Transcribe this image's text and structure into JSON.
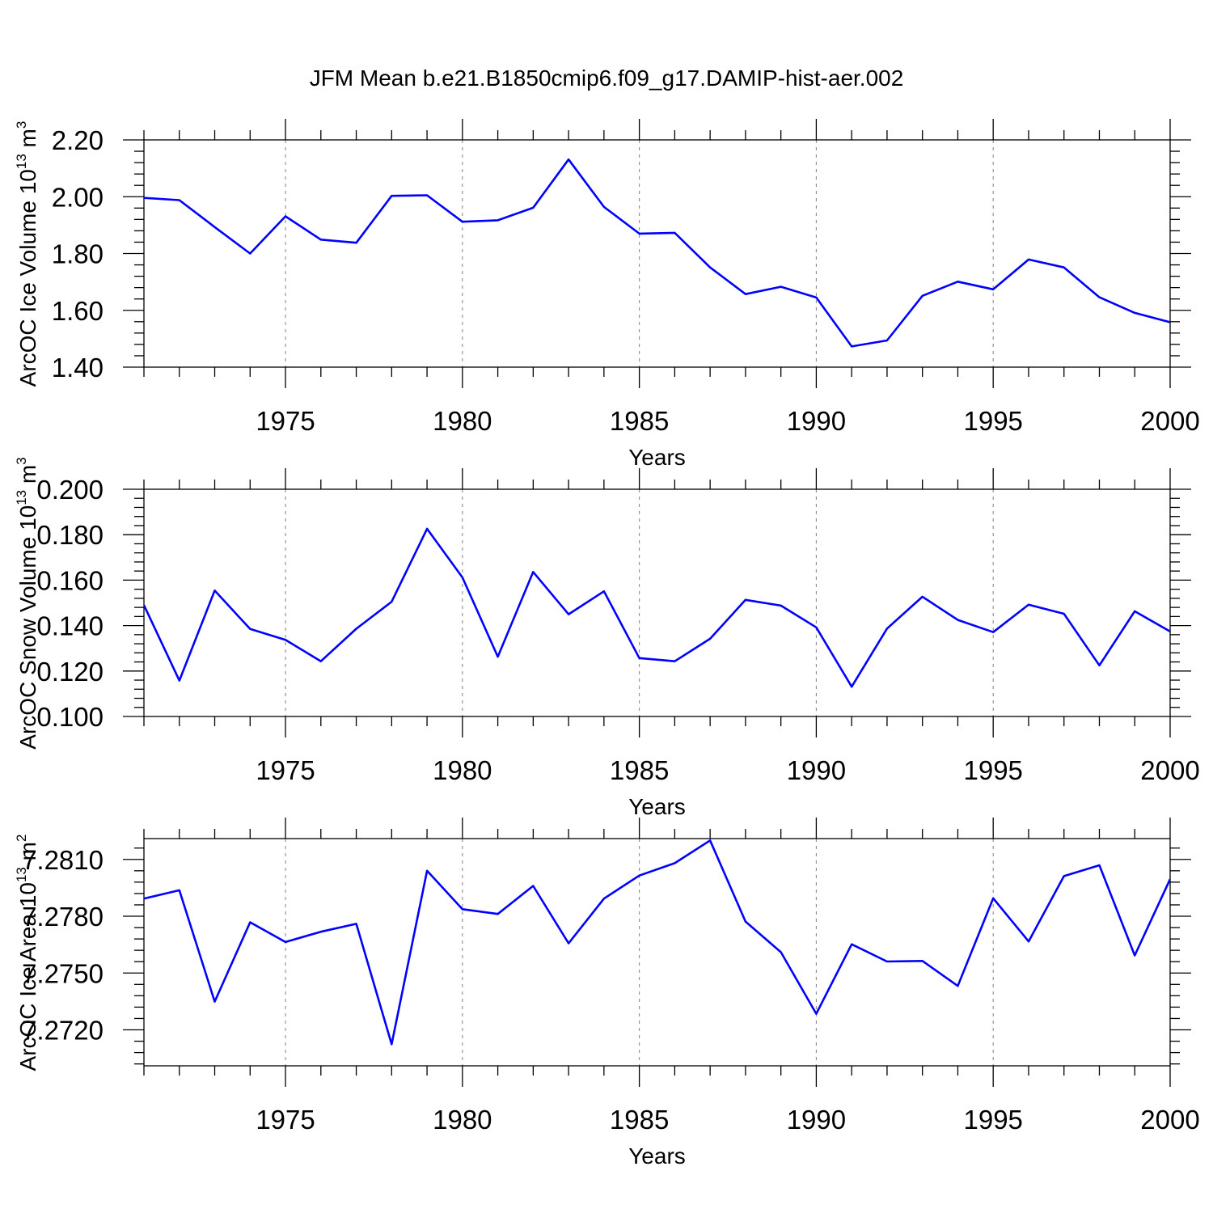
{
  "chart_data": {
    "title": "JFM Mean b.e21.B1850cmip6.f09_g17.DAMIP-hist-aer.002",
    "line_color": "#0000ff",
    "x_tick_labels": [
      "1975",
      "1980",
      "1985",
      "1990",
      "1995",
      "2000"
    ],
    "panels": [
      {
        "type": "line",
        "ylabel": {
          "text": "ArcOC Ice Volume 10",
          "exponent": "13",
          "unit": " m",
          "unit_exponent": "3"
        },
        "xlabel": "Years",
        "xlim": [
          1971,
          2000
        ],
        "ylim": [
          1.4,
          2.2
        ],
        "y_ticks": [
          1.4,
          1.6,
          1.8,
          2.0,
          2.2
        ],
        "y_tick_labels": [
          "1.40",
          "1.60",
          "1.80",
          "2.00",
          "2.20"
        ],
        "x": [
          1971,
          1972,
          1973,
          1974,
          1975,
          1976,
          1977,
          1978,
          1979,
          1980,
          1981,
          1982,
          1983,
          1984,
          1985,
          1986,
          1987,
          1988,
          1989,
          1990,
          1991,
          1992,
          1993,
          1994,
          1995,
          1996,
          1997,
          1998,
          1999,
          2000
        ],
        "values": [
          1.996,
          1.988,
          1.893,
          1.8,
          1.931,
          1.849,
          1.838,
          2.003,
          2.005,
          1.912,
          1.917,
          1.961,
          2.131,
          1.964,
          1.87,
          1.873,
          1.751,
          1.657,
          1.683,
          1.645,
          1.473,
          1.494,
          1.651,
          1.701,
          1.674,
          1.779,
          1.751,
          1.646,
          1.591,
          1.558
        ]
      },
      {
        "type": "line",
        "ylabel": {
          "text": "ArcOC Snow Volume 10",
          "exponent": "13",
          "unit": " m",
          "unit_exponent": "3"
        },
        "xlabel": "Years",
        "xlim": [
          1971,
          2000
        ],
        "ylim": [
          0.1,
          0.2
        ],
        "y_ticks": [
          0.1,
          0.12,
          0.14,
          0.16,
          0.18,
          0.2
        ],
        "y_tick_labels": [
          "0.100",
          "0.120",
          "0.140",
          "0.160",
          "0.180",
          "0.200"
        ],
        "x": [
          1971,
          1972,
          1973,
          1974,
          1975,
          1976,
          1977,
          1978,
          1979,
          1980,
          1981,
          1982,
          1983,
          1984,
          1985,
          1986,
          1987,
          1988,
          1989,
          1990,
          1991,
          1992,
          1993,
          1994,
          1995,
          1996,
          1997,
          1998,
          1999,
          2000
        ],
        "values": [
          0.149,
          0.1158,
          0.1554,
          0.1385,
          0.1337,
          0.1243,
          0.1386,
          0.1505,
          0.1826,
          0.1612,
          0.1263,
          0.1636,
          0.145,
          0.1551,
          0.1257,
          0.1243,
          0.1342,
          0.1513,
          0.1488,
          0.1392,
          0.1131,
          0.1387,
          0.1527,
          0.1425,
          0.1371,
          0.1492,
          0.1452,
          0.1225,
          0.1463,
          0.1374
        ]
      },
      {
        "type": "line",
        "ylabel": {
          "text": "ArcOC Ice Area 10",
          "exponent": "13",
          "unit": " m",
          "unit_exponent": "2"
        },
        "xlabel": "Years",
        "xlim": [
          1971,
          2000
        ],
        "ylim": [
          7.2701,
          7.2821
        ],
        "y_ticks": [
          7.272,
          7.275,
          7.278,
          7.281
        ],
        "y_tick_labels": [
          "7.2720",
          "7.2750",
          "7.2780",
          "7.2810"
        ],
        "x": [
          1971,
          1972,
          1973,
          1974,
          1975,
          1976,
          1977,
          1978,
          1979,
          1980,
          1981,
          1982,
          1983,
          1984,
          1985,
          1986,
          1987,
          1988,
          1989,
          1990,
          1991,
          1992,
          1993,
          1994,
          1995,
          1996,
          1997,
          1998,
          1999,
          2000
        ],
        "values": [
          7.27893,
          7.27937,
          7.27349,
          7.27768,
          7.27664,
          7.27718,
          7.2776,
          7.27124,
          7.2804,
          7.27837,
          7.27812,
          7.2796,
          7.27657,
          7.27893,
          7.28015,
          7.2808,
          7.282,
          7.27772,
          7.2761,
          7.27285,
          7.27652,
          7.27561,
          7.27564,
          7.27432,
          7.27895,
          7.27667,
          7.28012,
          7.28069,
          7.27593,
          7.27996
        ]
      }
    ]
  }
}
